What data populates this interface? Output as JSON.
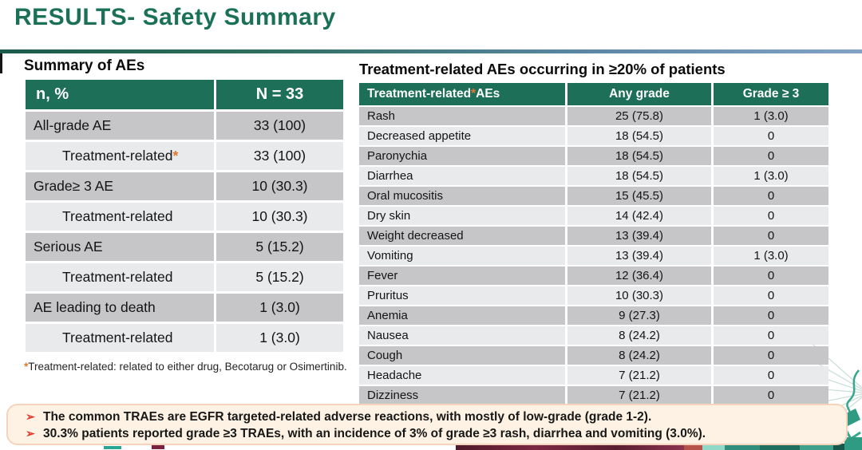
{
  "title": "RESULTS- Safety Summary",
  "left_table": {
    "heading": "Summary of AEs",
    "col1_header": "n, %",
    "col2_header": "N = 33",
    "rows": [
      {
        "label": "All-grade AE",
        "value": "33 (100)",
        "indent": false,
        "asterisk": false
      },
      {
        "label": "Treatment-related",
        "value": "33 (100)",
        "indent": true,
        "asterisk": true
      },
      {
        "label": "Grade≥ 3 AE",
        "value": "10 (30.3)",
        "indent": false,
        "asterisk": false
      },
      {
        "label": "Treatment-related",
        "value": "10 (30.3)",
        "indent": true,
        "asterisk": false
      },
      {
        "label": "Serious AE",
        "value": "5 (15.2)",
        "indent": false,
        "asterisk": false
      },
      {
        "label": "Treatment-related",
        "value": "5 (15.2)",
        "indent": true,
        "asterisk": false
      },
      {
        "label": "AE leading to death",
        "value": "1 (3.0)",
        "indent": false,
        "asterisk": false
      },
      {
        "label": "Treatment-related",
        "value": "1 (3.0)",
        "indent": true,
        "asterisk": false
      }
    ],
    "footnote_ast": "*",
    "footnote": "Treatment-related: related to either drug, Becotarug or Osimertinib."
  },
  "right_table": {
    "heading": "Treatment-related AEs occurring in ≥20% of patients",
    "col1_header": {
      "pre": "Treatment-related",
      "ast": "*",
      "post": " AEs"
    },
    "col2_header": "Any grade",
    "col3_header": "Grade ≥ 3",
    "rows": [
      [
        "Rash",
        "25 (75.8)",
        "1 (3.0)"
      ],
      [
        "Decreased appetite",
        "18 (54.5)",
        "0"
      ],
      [
        "Paronychia",
        "18 (54.5)",
        "0"
      ],
      [
        "Diarrhea",
        "18 (54.5)",
        "1 (3.0)"
      ],
      [
        "Oral mucositis",
        "15 (45.5)",
        "0"
      ],
      [
        "Dry skin",
        "14 (42.4)",
        "0"
      ],
      [
        "Weight decreased",
        "13 (39.4)",
        "0"
      ],
      [
        "Vomiting",
        "13 (39.4)",
        "1 (3.0)"
      ],
      [
        "Fever",
        "12 (36.4)",
        "0"
      ],
      [
        "Pruritus",
        "10 (30.3)",
        "0"
      ],
      [
        "Anemia",
        "9 (27.3)",
        "0"
      ],
      [
        "Nausea",
        "8 (24.2)",
        "0"
      ],
      [
        "Cough",
        "8 (24.2)",
        "0"
      ],
      [
        "Headache",
        "7 (21.2)",
        "0"
      ],
      [
        "Dizziness",
        "7 (21.2)",
        "0"
      ]
    ]
  },
  "takeaways": {
    "bullet_glyph": "➢",
    "items": [
      "The common TRAEs are EGFR targeted-related adverse reactions, with mostly of low-grade (grade 1-2).",
      "30.3% patients reported grade ≥3 TRAEs, with an incidence of 3% of grade ≥3 rash, diarrhea and vomiting (3.0%)."
    ]
  },
  "colors": {
    "title_green": "#1b7058",
    "header_green": "#1e6f58",
    "row_dark": "#c6c6c8",
    "row_light": "#e9eaec",
    "asterisk_orange": "#e2762d",
    "bullet_red": "#e03a2f",
    "panel_bg": "#fdf2e3",
    "panel_border": "#f5d3bd",
    "rule_green": "#1a5b4c",
    "rule_blue": "#83a2c6",
    "strip_maroon": "#6b2238",
    "strip_teal": "#2f8f7c"
  }
}
